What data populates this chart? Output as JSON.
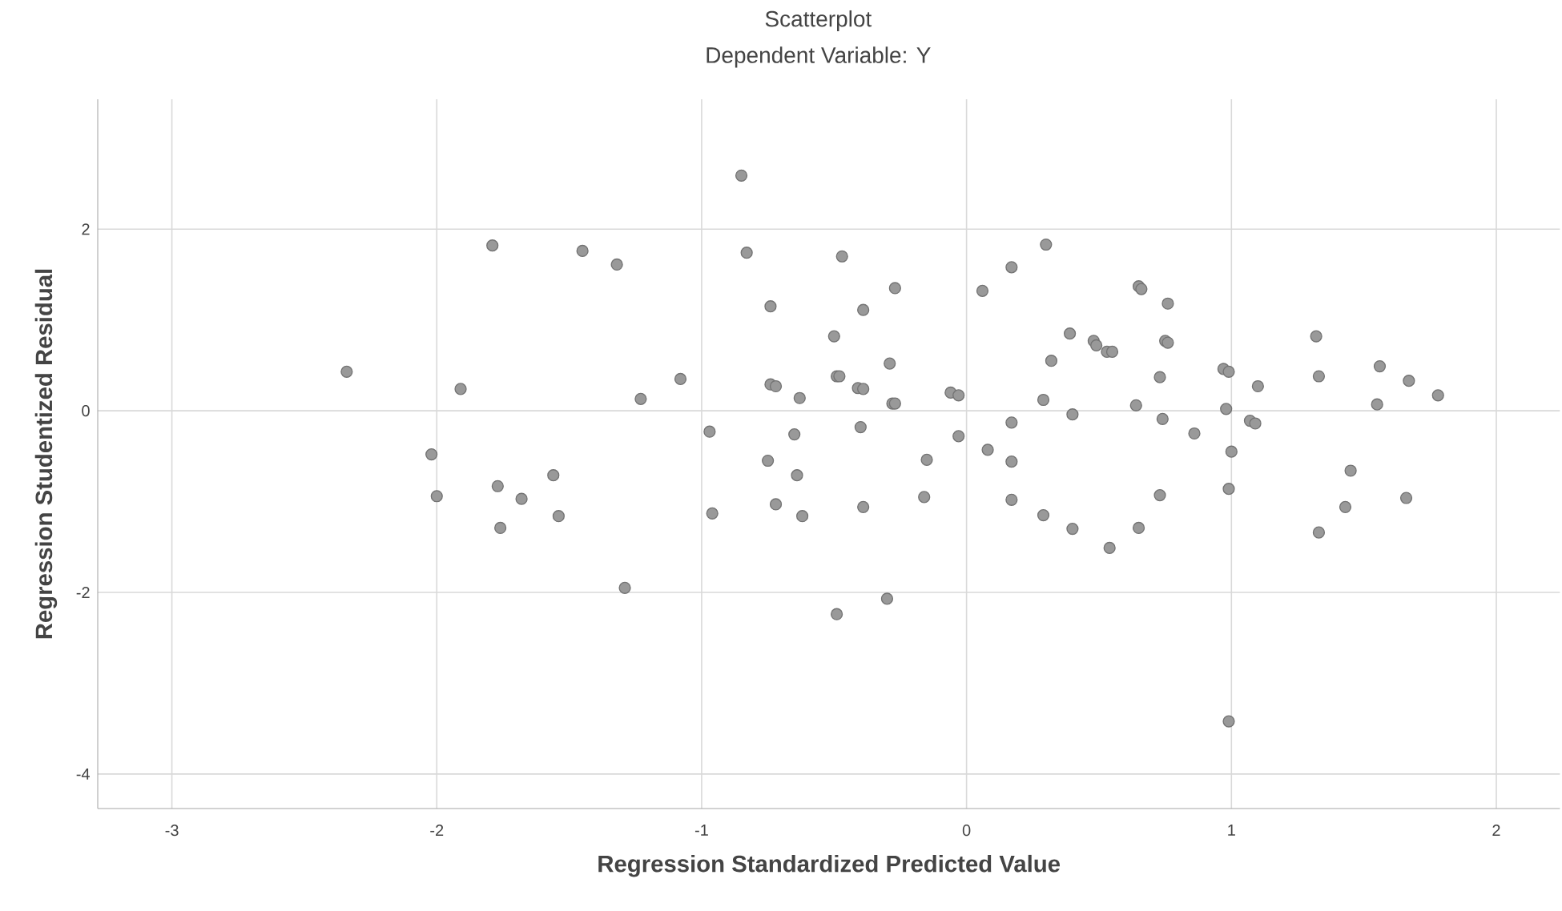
{
  "chart_data": {
    "type": "scatter",
    "title": "Scatterplot",
    "subtitle": "Dependent Variable: Y",
    "xlabel": "Regression Standardized Predicted Value",
    "ylabel": "Regression Studentized Residual",
    "x": [
      -2.34,
      -1.79,
      -1.45,
      -1.32,
      -1.91,
      -1.23,
      -1.08,
      -2.02,
      -2.0,
      -1.77,
      -1.68,
      -1.56,
      -1.76,
      -1.54,
      -1.29,
      -0.97,
      -0.96,
      -0.85,
      -0.83,
      -0.47,
      -0.27,
      -0.74,
      -0.39,
      -0.5,
      -0.29,
      -0.74,
      -0.72,
      -0.63,
      -0.49,
      -0.48,
      -0.41,
      -0.39,
      -0.28,
      -0.27,
      -0.06,
      -0.03,
      0.06,
      -0.65,
      -0.4,
      -0.03,
      -0.75,
      -0.64,
      -0.15,
      -0.72,
      -0.62,
      -0.39,
      -0.16,
      -0.3,
      -0.49,
      0.08,
      0.3,
      0.17,
      0.65,
      0.66,
      0.76,
      0.39,
      0.48,
      0.49,
      0.53,
      0.55,
      0.75,
      0.76,
      0.32,
      0.73,
      0.97,
      0.99,
      1.1,
      0.29,
      0.4,
      0.64,
      0.74,
      0.98,
      1.07,
      1.09,
      0.86,
      0.17,
      0.17,
      1.0,
      0.99,
      0.17,
      0.73,
      0.29,
      0.4,
      0.65,
      0.54,
      0.99,
      1.32,
      1.33,
      1.56,
      1.67,
      1.78,
      1.55,
      1.45,
      1.66,
      1.43,
      1.33
    ],
    "values": [
      0.43,
      1.82,
      1.76,
      1.61,
      0.24,
      0.13,
      0.35,
      -0.48,
      -0.94,
      -0.83,
      -0.97,
      -0.71,
      -1.29,
      -1.16,
      -1.95,
      -0.23,
      -1.13,
      2.59,
      1.74,
      1.7,
      1.35,
      1.15,
      1.11,
      0.82,
      0.52,
      0.29,
      0.27,
      0.14,
      0.38,
      0.38,
      0.25,
      0.24,
      0.08,
      0.08,
      0.2,
      0.17,
      1.32,
      -0.26,
      -0.18,
      -0.28,
      -0.55,
      -0.71,
      -0.54,
      -1.03,
      -1.16,
      -1.06,
      -0.95,
      -2.07,
      -2.24,
      -0.43,
      1.83,
      1.58,
      1.37,
      1.34,
      1.18,
      0.85,
      0.77,
      0.72,
      0.65,
      0.65,
      0.77,
      0.75,
      0.55,
      0.37,
      0.46,
      0.43,
      0.27,
      0.12,
      -0.04,
      0.06,
      -0.09,
      0.02,
      -0.11,
      -0.14,
      -0.25,
      -0.13,
      -0.56,
      -0.45,
      -0.86,
      -0.98,
      -0.93,
      -1.15,
      -1.3,
      -1.29,
      -1.51,
      -3.42,
      0.82,
      0.38,
      0.49,
      0.33,
      0.17,
      0.07,
      -0.66,
      -0.96,
      -1.06,
      -1.34
    ],
    "color": "#999999",
    "marker": "circle",
    "grid": true,
    "xlim": [
      -3.28,
      2.24
    ],
    "ylim": [
      -4.38,
      3.43
    ],
    "xticks": [
      -3,
      -2,
      -1,
      0,
      1,
      2
    ],
    "yticks": [
      -4,
      -2,
      0,
      2
    ]
  }
}
